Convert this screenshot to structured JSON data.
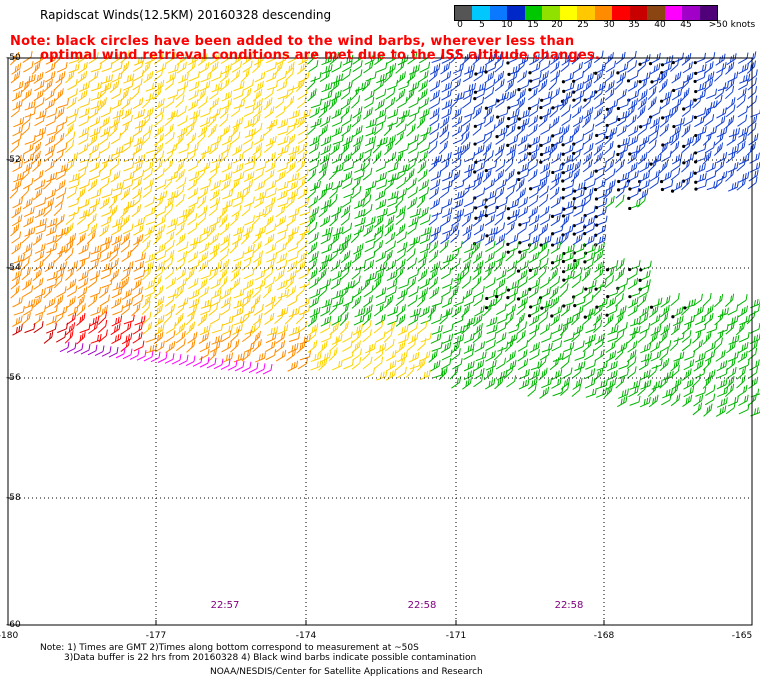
{
  "header": {
    "title": "Rapidscat Winds(12.5KM) 20160328 descending"
  },
  "legend": {
    "colors": [
      "#555555",
      "#00c8ff",
      "#0a78ff",
      "#0028c8",
      "#00c800",
      "#90e000",
      "#ffff00",
      "#ffc800",
      "#ff8c00",
      "#ff0000",
      "#c80000",
      "#8b4513",
      "#ff00ff",
      "#a000c8",
      "#500078"
    ],
    "labels": [
      "0",
      "5",
      "10",
      "15",
      "20",
      "25",
      "30",
      "35",
      "40",
      "45",
      ">50 knots"
    ]
  },
  "note": {
    "line1": "Note: black circles have been added to the wind barbs, wherever less than",
    "line2": "optimal wind retrieval conditions are met due to the ISS altitude changes."
  },
  "map": {
    "lat_labels": [
      "-50",
      "-52",
      "-54",
      "-56",
      "-58",
      "-60"
    ],
    "lon_labels": [
      "-180",
      "-177",
      "-174",
      "-171",
      "-168",
      "-165"
    ],
    "times": [
      "22:57",
      "22:58",
      "22:58"
    ]
  },
  "footer": {
    "line1": "Note: 1) Times are GMT 2)Times along bottom correspond to measurement at ~50S",
    "line2": "3)Data buffer is 22 hrs from 20160328 4) Black wind barbs indicate possible contamination",
    "credit": "NOAA/NESDIS/Center for Satellite Applications and Research"
  }
}
